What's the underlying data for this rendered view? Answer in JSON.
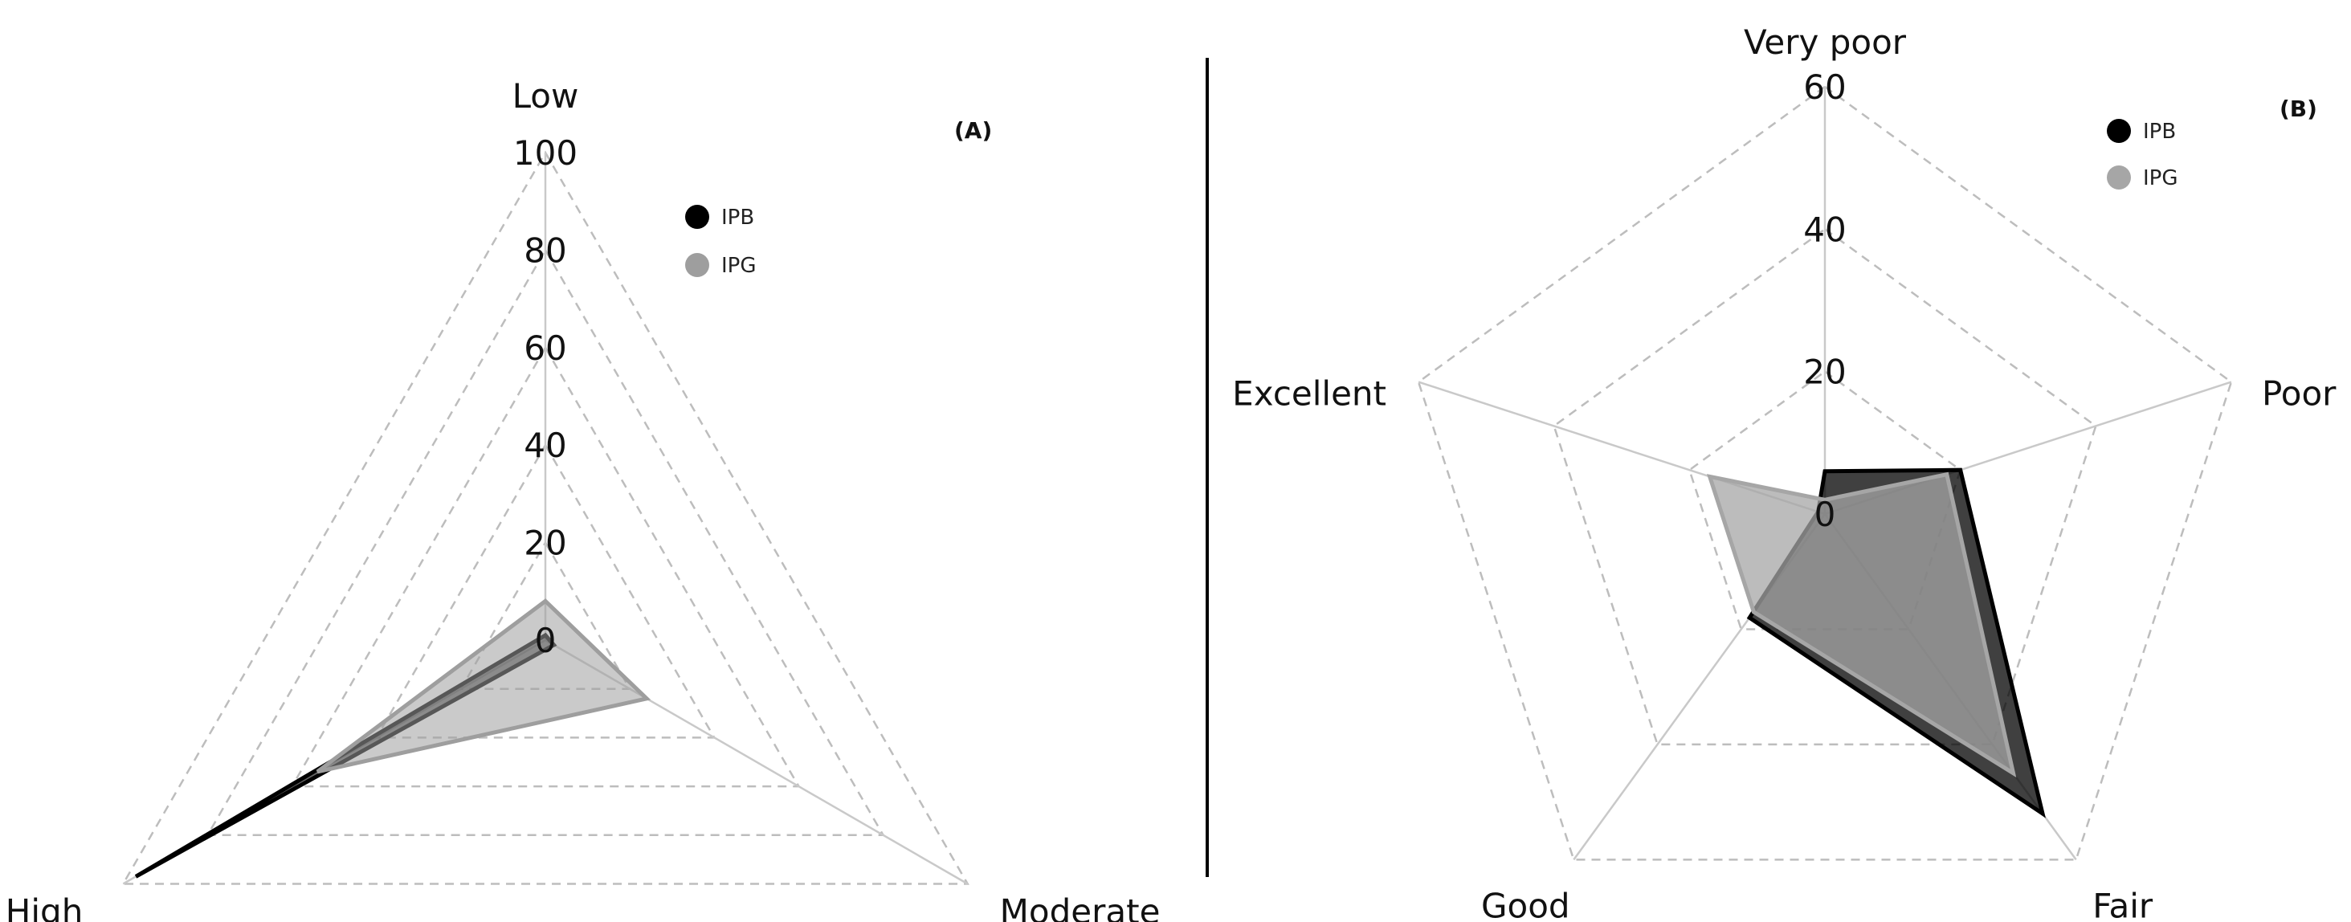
{
  "chart_data": [
    {
      "type": "radar",
      "panel_label": "(A)",
      "axes": [
        "Low",
        "Moderate",
        "High"
      ],
      "radial_ticks": [
        0,
        20,
        40,
        60,
        80,
        100
      ],
      "rlim": [
        0,
        100
      ],
      "grid": true,
      "legend": "top-right",
      "series": [
        {
          "name": "IPB",
          "color": "#000000",
          "fill_opacity": 0.55,
          "values": [
            1,
            2,
            97
          ]
        },
        {
          "name": "IPG",
          "color": "#9e9e9e",
          "fill_opacity": 0.55,
          "values": [
            8,
            24,
            54
          ]
        }
      ]
    },
    {
      "type": "radar",
      "panel_label": "(B)",
      "axes": [
        "Very poor",
        "Poor",
        "Fair",
        "Good",
        "Excellent"
      ],
      "radial_ticks": [
        0,
        20,
        40,
        60
      ],
      "rlim": [
        0,
        60
      ],
      "grid": true,
      "legend": "top-right",
      "series": [
        {
          "name": "IPB",
          "color": "#000000",
          "fill_opacity": 0.75,
          "values": [
            6,
            20,
            52,
            18,
            1
          ]
        },
        {
          "name": "IPG",
          "color": "#a6a6a6",
          "fill_opacity": 0.75,
          "values": [
            2,
            18,
            45,
            17,
            17
          ]
        }
      ]
    }
  ]
}
